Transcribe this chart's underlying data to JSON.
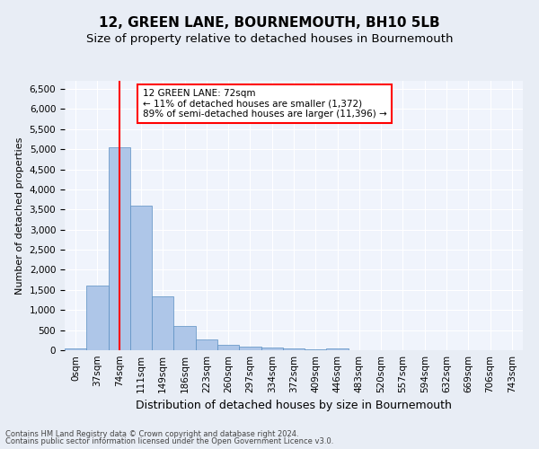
{
  "title": "12, GREEN LANE, BOURNEMOUTH, BH10 5LB",
  "subtitle": "Size of property relative to detached houses in Bournemouth",
  "xlabel": "Distribution of detached houses by size in Bournemouth",
  "ylabel": "Number of detached properties",
  "footer_line1": "Contains HM Land Registry data © Crown copyright and database right 2024.",
  "footer_line2": "Contains public sector information licensed under the Open Government Licence v3.0.",
  "bin_labels": [
    "0sqm",
    "37sqm",
    "74sqm",
    "111sqm",
    "149sqm",
    "186sqm",
    "223sqm",
    "260sqm",
    "297sqm",
    "334sqm",
    "372sqm",
    "409sqm",
    "446sqm",
    "483sqm",
    "520sqm",
    "557sqm",
    "594sqm",
    "632sqm",
    "669sqm",
    "706sqm",
    "743sqm"
  ],
  "bar_values": [
    50,
    1600,
    5050,
    3600,
    1350,
    600,
    275,
    125,
    100,
    75,
    50,
    25,
    50,
    0,
    0,
    0,
    0,
    0,
    0,
    0,
    0
  ],
  "bar_color": "#aec6e8",
  "bar_edge_color": "#5a8fc2",
  "red_line_x": 2,
  "annotation_text": "12 GREEN LANE: 72sqm\n← 11% of detached houses are smaller (1,372)\n89% of semi-detached houses are larger (11,396) →",
  "annotation_box_color": "white",
  "annotation_box_edge_color": "red",
  "ylim": [
    0,
    6700
  ],
  "yticks": [
    0,
    500,
    1000,
    1500,
    2000,
    2500,
    3000,
    3500,
    4000,
    4500,
    5000,
    5500,
    6000,
    6500
  ],
  "bg_color": "#e8edf5",
  "plot_bg_color": "#f0f4fc",
  "grid_color": "white",
  "title_fontsize": 11,
  "subtitle_fontsize": 9.5,
  "xlabel_fontsize": 9,
  "ylabel_fontsize": 8,
  "tick_fontsize": 7.5,
  "footer_fontsize": 6
}
